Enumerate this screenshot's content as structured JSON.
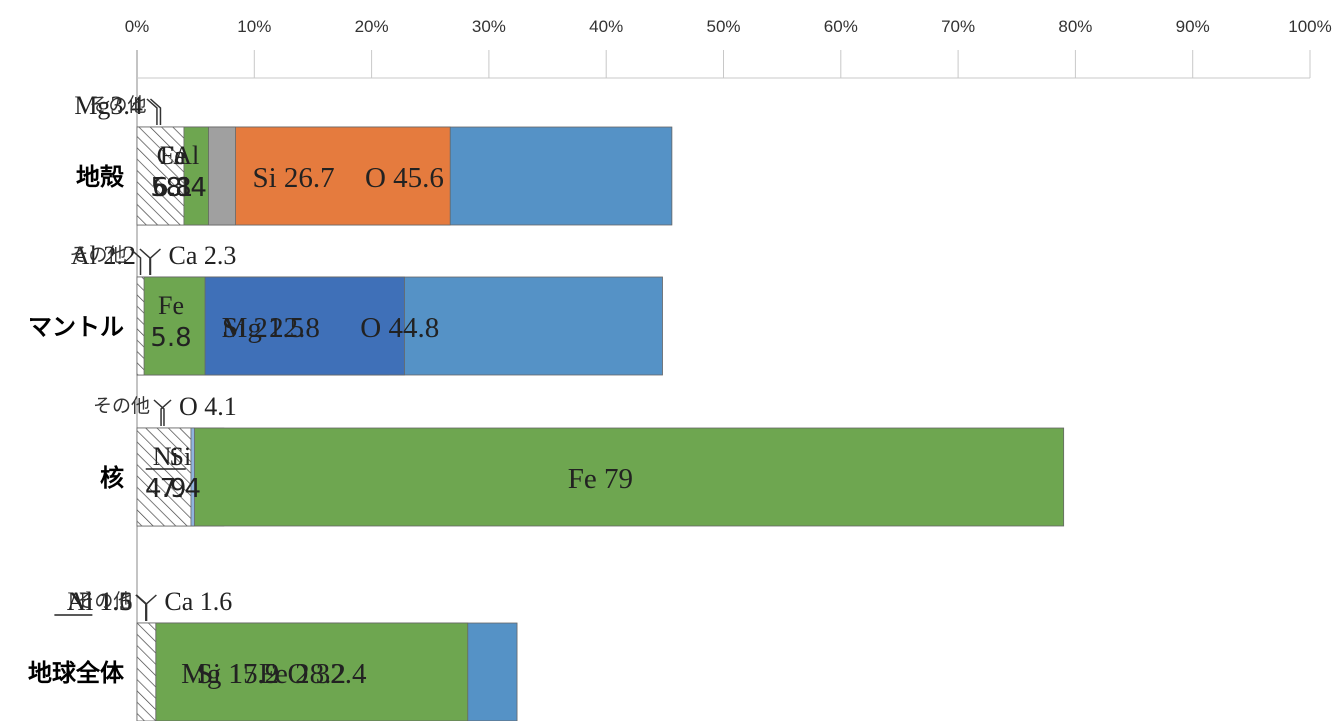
{
  "chart_data": {
    "type": "stacked-bar-horizontal",
    "title": "",
    "xlabel": "",
    "ylabel": "",
    "xlim": [
      0,
      100
    ],
    "x_ticks": [
      "0%",
      "10%",
      "20%",
      "30%",
      "40%",
      "50%",
      "60%",
      "70%",
      "80%",
      "90%",
      "100%"
    ],
    "grid": true,
    "legend": "none",
    "element_colors": {
      "O": "#5592c6",
      "Si": "#e57b3e",
      "Al": "#a0a0a0",
      "Ca": "#f5b731",
      "Mg": "#3f70b8",
      "Fe": "#6ea650",
      "Ni": "#8fb3de",
      "その他": "hatch"
    },
    "bars": [
      {
        "category": "地殻",
        "segments": [
          {
            "element": "O",
            "value": 45.6,
            "label_lines": [
              "O 45.6"
            ]
          },
          {
            "element": "Si",
            "value": 26.7,
            "label_lines": [
              "Si 26.7"
            ]
          },
          {
            "element": "Al",
            "value": 8.4,
            "label_lines": [
              "Al",
              "8.4"
            ]
          },
          {
            "element": "Ca",
            "value": 5.8,
            "label_lines": [
              "Ca",
              "5.8"
            ]
          },
          {
            "element": "Mg",
            "value": 3.4,
            "label_lines": []
          },
          {
            "element": "Fe",
            "value": 6.1,
            "label_lines": [
              "Fe",
              "6.1"
            ]
          },
          {
            "element": "その他",
            "value": 4.0,
            "label_lines": []
          }
        ],
        "callouts": [
          {
            "text": "Mg3.4",
            "element": "Mg"
          },
          {
            "text": "その他",
            "element": "その他"
          }
        ]
      },
      {
        "category": "マントル",
        "segments": [
          {
            "element": "O",
            "value": 44.8,
            "label_lines": [
              "O 44.8"
            ]
          },
          {
            "element": "Si",
            "value": 21.5,
            "label_lines": [
              "Si 21.5"
            ]
          },
          {
            "element": "Al",
            "value": 2.2,
            "label_lines": []
          },
          {
            "element": "Ca",
            "value": 2.3,
            "label_lines": []
          },
          {
            "element": "Mg",
            "value": 22.8,
            "label_lines": [
              "Mg 22.8"
            ]
          },
          {
            "element": "Fe",
            "value": 5.8,
            "label_lines": [
              "Fe",
              "5.8"
            ]
          },
          {
            "element": "その他",
            "value": 0.6,
            "label_lines": []
          }
        ],
        "callouts": [
          {
            "text": "Al 2.2",
            "element": "Al"
          },
          {
            "text": "Ca 2.3",
            "element": "Ca"
          },
          {
            "text": "その他",
            "element": "その他"
          }
        ]
      },
      {
        "category": "核",
        "segments": [
          {
            "element": "O",
            "value": 4.1,
            "label_lines": []
          },
          {
            "element": "Si",
            "value": 7.4,
            "label_lines": [
              "Si",
              "7.4"
            ]
          },
          {
            "element": "Fe",
            "value": 79,
            "label_lines": [
              "Fe 79"
            ]
          },
          {
            "element": "Ni",
            "value": 4.9,
            "label_lines": [
              "Ni",
              "4.9"
            ]
          },
          {
            "element": "その他",
            "value": 4.6,
            "label_lines": []
          }
        ],
        "callouts": [
          {
            "text": "O 4.1",
            "element": "O"
          },
          {
            "text": "その他",
            "element": "その他"
          }
        ]
      },
      {
        "category": "地球全体",
        "segments": [
          {
            "element": "O",
            "value": 32.4,
            "label_lines": [
              "O 32.4"
            ]
          },
          {
            "element": "Si",
            "value": 17.2,
            "label_lines": [
              "Si 17.2"
            ]
          },
          {
            "element": "Al",
            "value": 1.5,
            "label_lines": []
          },
          {
            "element": "Ca",
            "value": 1.6,
            "label_lines": []
          },
          {
            "element": "Mg",
            "value": 15.9,
            "label_lines": [
              "Mg 15.9"
            ]
          },
          {
            "element": "Fe",
            "value": 28.2,
            "label_lines": [
              "Fe 28.2"
            ]
          },
          {
            "element": "Ni",
            "value": 1.6,
            "label_lines": []
          },
          {
            "element": "その他",
            "value": 1.6,
            "label_lines": []
          }
        ],
        "callouts": [
          {
            "text": "Al 1.5",
            "element": "Al"
          },
          {
            "text": "Ca 1.6",
            "element": "Ca"
          },
          {
            "text": "Ni 1.6",
            "element": "Ni"
          },
          {
            "text": "その他",
            "element": "その他"
          }
        ]
      }
    ]
  }
}
